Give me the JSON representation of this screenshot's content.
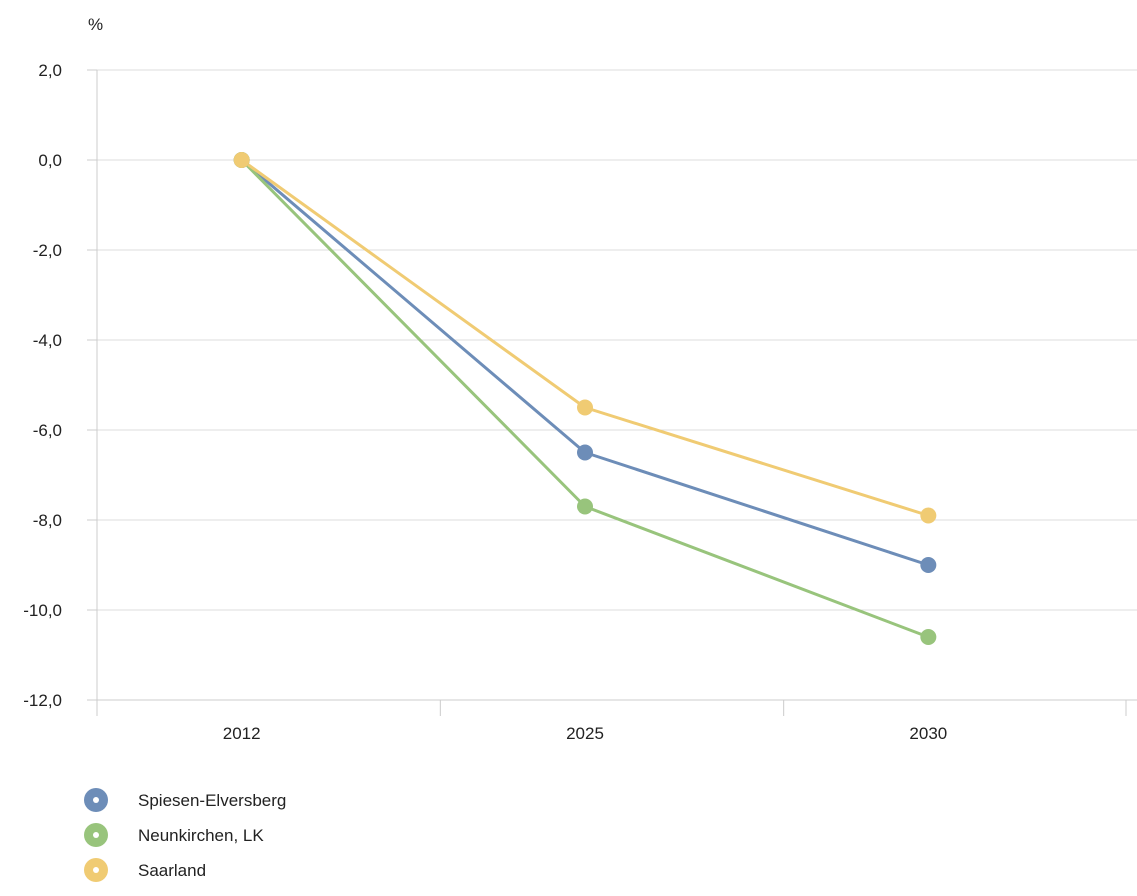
{
  "chart_data": {
    "type": "line",
    "title": "",
    "xlabel": "",
    "ylabel": "%",
    "categories": [
      "2012",
      "2025",
      "2030"
    ],
    "ylim": [
      -12,
      2
    ],
    "yticks": [
      2,
      0,
      -2,
      -4,
      -6,
      -8,
      -10,
      -12
    ],
    "ytick_labels": [
      "2,0",
      "0,0",
      "-2,0",
      "-4,0",
      "-6,0",
      "-8,0",
      "-10,0",
      "-12,0"
    ],
    "grid": true,
    "legend_position": "bottom-left",
    "series": [
      {
        "name": "Spiesen-Elversberg",
        "color": "#6d8db8",
        "values": [
          0,
          -6.5,
          -9.0
        ]
      },
      {
        "name": "Neunkirchen, LK",
        "color": "#98c47c",
        "values": [
          0,
          -7.7,
          -10.6
        ]
      },
      {
        "name": "Saarland",
        "color": "#f0cb73",
        "values": [
          0,
          -5.5,
          -7.9
        ]
      }
    ]
  }
}
